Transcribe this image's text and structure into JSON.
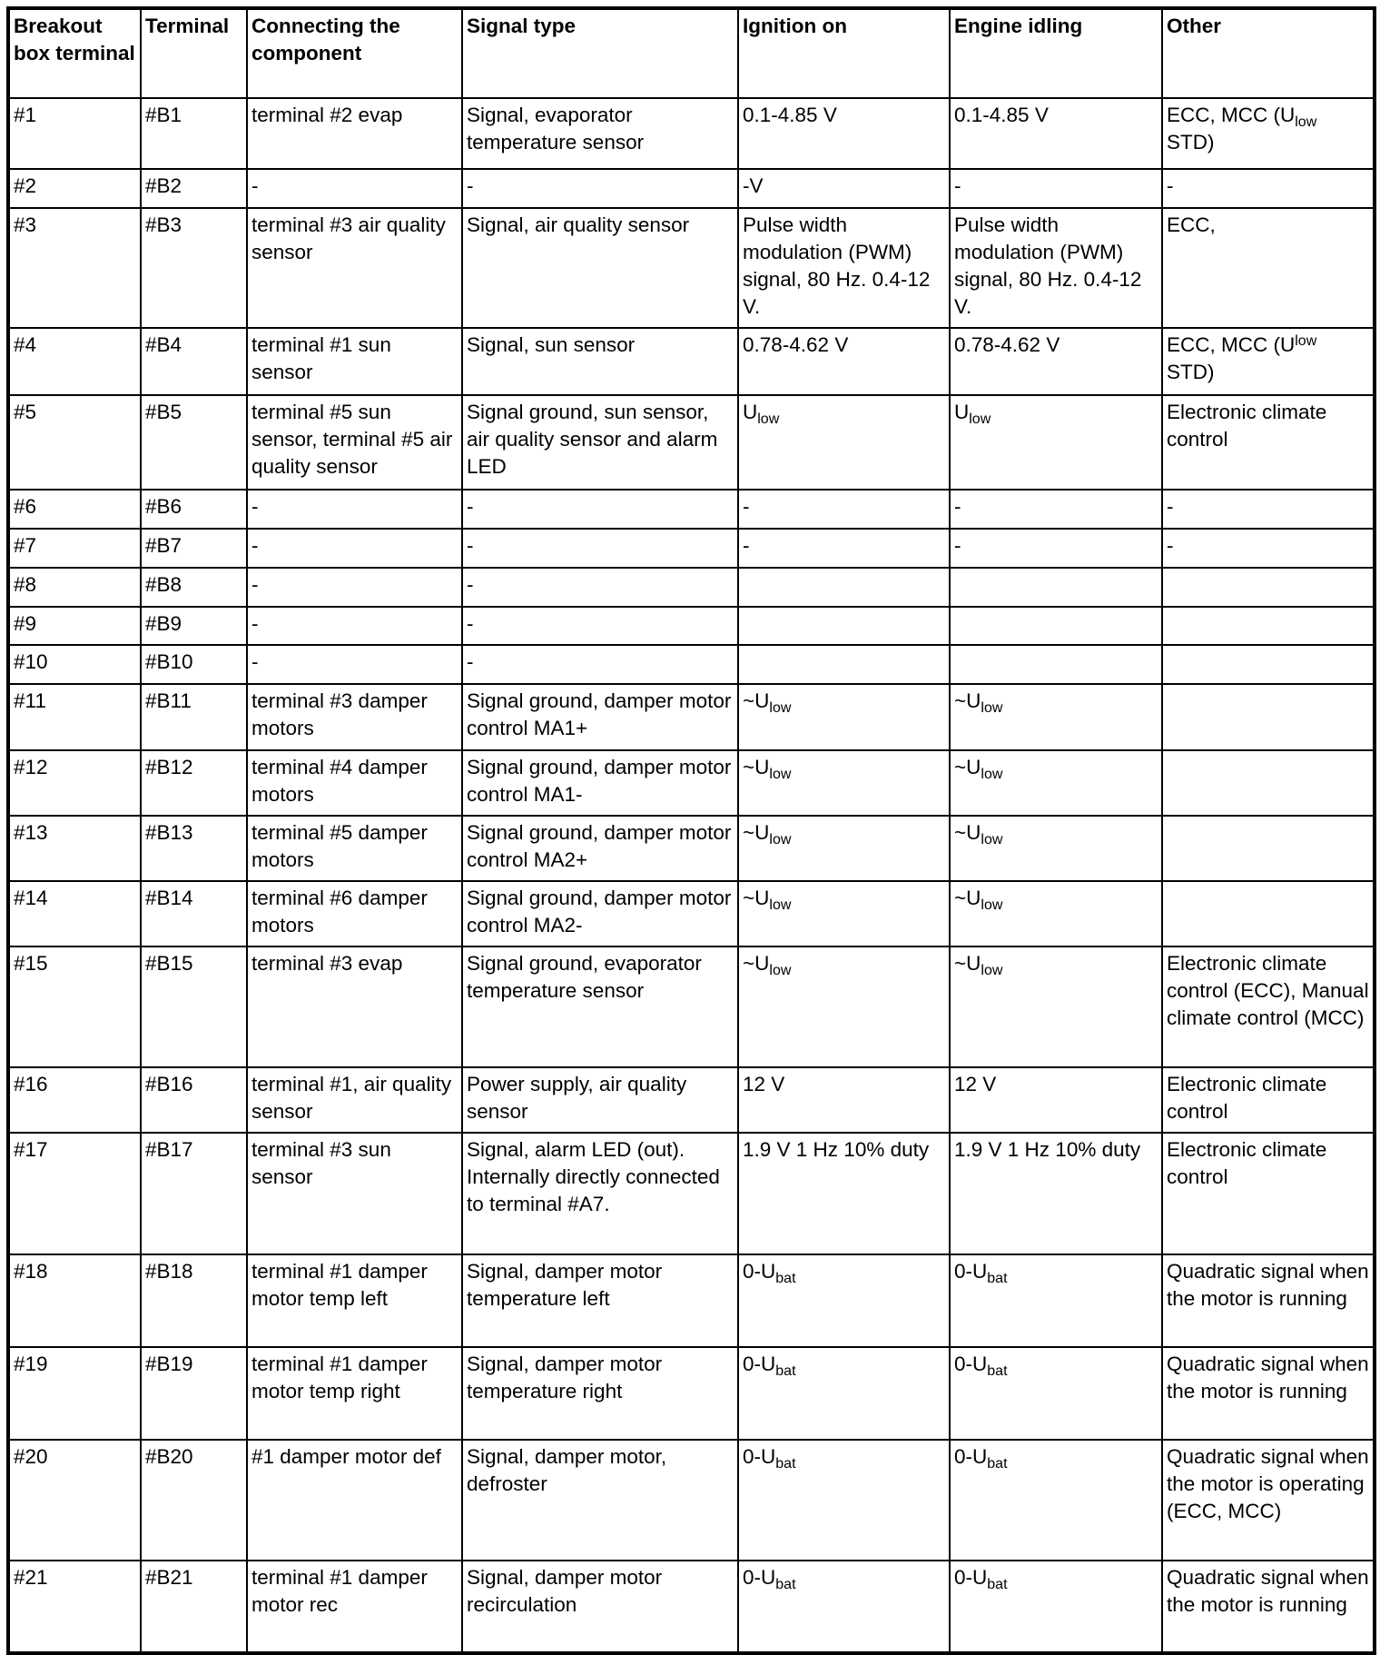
{
  "headers": [
    "Breakout box terminal",
    "Terminal",
    "Connecting the component",
    "Signal type",
    "Ignition on",
    "Engine idling",
    "Other"
  ],
  "rows": [
    [
      "#1",
      "#B1",
      "terminal #2 evap",
      "Signal, evaporator temperature sensor",
      "0.1-4.85 V",
      "0.1-4.85 V",
      [
        {
          "t": "ECC, MCC (U"
        },
        {
          "sub": "low"
        },
        {
          "t": " STD)"
        }
      ]
    ],
    [
      "#2",
      "#B2",
      "-",
      "-",
      "-V",
      "-",
      "-"
    ],
    [
      "#3",
      "#B3",
      "terminal #3 air quality sensor",
      "Signal, air quality sensor",
      "Pulse width modulation (PWM) signal, 80 Hz. 0.4-12 V.",
      "Pulse width modulation (PWM) signal, 80 Hz. 0.4-12 V.",
      "ECC,"
    ],
    [
      "#4",
      "#B4",
      "terminal #1 sun sensor",
      "Signal, sun sensor",
      "0.78-4.62 V",
      "0.78-4.62 V",
      [
        {
          "t": "ECC, MCC (U"
        },
        {
          "sup": "low"
        },
        {
          "t": " STD)"
        }
      ]
    ],
    [
      "#5",
      "#B5",
      "terminal #5 sun sensor, terminal #5 air quality sensor",
      "Signal ground, sun sensor, air quality sensor and alarm LED",
      [
        {
          "t": "U"
        },
        {
          "sub": "low"
        }
      ],
      [
        {
          "t": "U"
        },
        {
          "sub": "low"
        }
      ],
      "Electronic climate control"
    ],
    [
      "#6",
      "#B6",
      "-",
      "-",
      "-",
      "-",
      "-"
    ],
    [
      "#7",
      "#B7",
      "-",
      "-",
      "-",
      "-",
      "-"
    ],
    [
      "#8",
      "#B8",
      "-",
      "-",
      "",
      "",
      ""
    ],
    [
      "#9",
      "#B9",
      "-",
      "-",
      "",
      "",
      ""
    ],
    [
      "#10",
      "#B10",
      "-",
      "-",
      "",
      "",
      ""
    ],
    [
      "#11",
      "#B11",
      "terminal #3 damper motors",
      "Signal ground, damper motor control MA1+",
      [
        {
          "t": "~U"
        },
        {
          "sub": "low"
        }
      ],
      [
        {
          "t": "~U"
        },
        {
          "sub": "low"
        }
      ],
      ""
    ],
    [
      "#12",
      "#B12",
      "terminal #4 damper motors",
      "Signal ground, damper motor control MA1-",
      [
        {
          "t": "~U"
        },
        {
          "sub": "low"
        }
      ],
      [
        {
          "t": "~U"
        },
        {
          "sub": "low"
        }
      ],
      ""
    ],
    [
      "#13",
      "#B13",
      "terminal #5 damper motors",
      "Signal ground, damper motor control MA2+",
      [
        {
          "t": "~U"
        },
        {
          "sub": "low"
        }
      ],
      [
        {
          "t": "~U"
        },
        {
          "sub": "low"
        }
      ],
      ""
    ],
    [
      "#14",
      "#B14",
      "terminal #6 damper motors",
      "Signal ground, damper motor control MA2-",
      [
        {
          "t": "~U"
        },
        {
          "sub": "low"
        }
      ],
      [
        {
          "t": "~U"
        },
        {
          "sub": "low"
        }
      ],
      ""
    ],
    [
      "#15",
      "#B15",
      "terminal #3 evap",
      "Signal ground, evaporator temperature sensor",
      [
        {
          "t": "~U"
        },
        {
          "sub": "low"
        }
      ],
      [
        {
          "t": "~U"
        },
        {
          "sub": "low"
        }
      ],
      "Electronic climate control (ECC), Manual climate control (MCC)"
    ],
    [
      "#16",
      "#B16",
      "terminal #1, air quality sensor",
      "Power supply, air quality sensor",
      "12 V",
      "12 V",
      "Electronic climate control"
    ],
    [
      "#17",
      "#B17",
      "terminal #3 sun sensor",
      "Signal, alarm LED (out). Internally directly connected to terminal #A7.",
      "1.9 V 1 Hz 10% duty",
      "1.9 V 1 Hz 10% duty",
      "Electronic climate control"
    ],
    [
      "#18",
      "#B18",
      "terminal #1 damper motor temp left",
      "Signal, damper motor temperature left",
      [
        {
          "t": "0-U"
        },
        {
          "sub": "bat"
        }
      ],
      [
        {
          "t": "0-U"
        },
        {
          "sub": "bat"
        }
      ],
      "Quadratic signal when the motor is running"
    ],
    [
      "#19",
      "#B19",
      "terminal #1 damper motor temp right",
      "Signal, damper motor temperature right",
      [
        {
          "t": "0-U"
        },
        {
          "sub": "bat"
        }
      ],
      [
        {
          "t": "0-U"
        },
        {
          "sub": "bat"
        }
      ],
      "Quadratic signal when the motor is running"
    ],
    [
      "#20",
      "#B20",
      "#1 damper motor def",
      "Signal, damper motor, defroster",
      [
        {
          "t": "0-U"
        },
        {
          "sub": "bat"
        }
      ],
      [
        {
          "t": "0-U"
        },
        {
          "sub": "bat"
        }
      ],
      "Quadratic signal when the motor is operating (ECC, MCC)"
    ],
    [
      "#21",
      "#B21",
      "terminal #1 damper motor rec",
      "Signal, damper motor recirculation",
      [
        {
          "t": "0-U"
        },
        {
          "sub": "bat"
        }
      ],
      [
        {
          "t": "0-U"
        },
        {
          "sub": "bat"
        }
      ],
      "Quadratic signal when the motor is running"
    ]
  ]
}
